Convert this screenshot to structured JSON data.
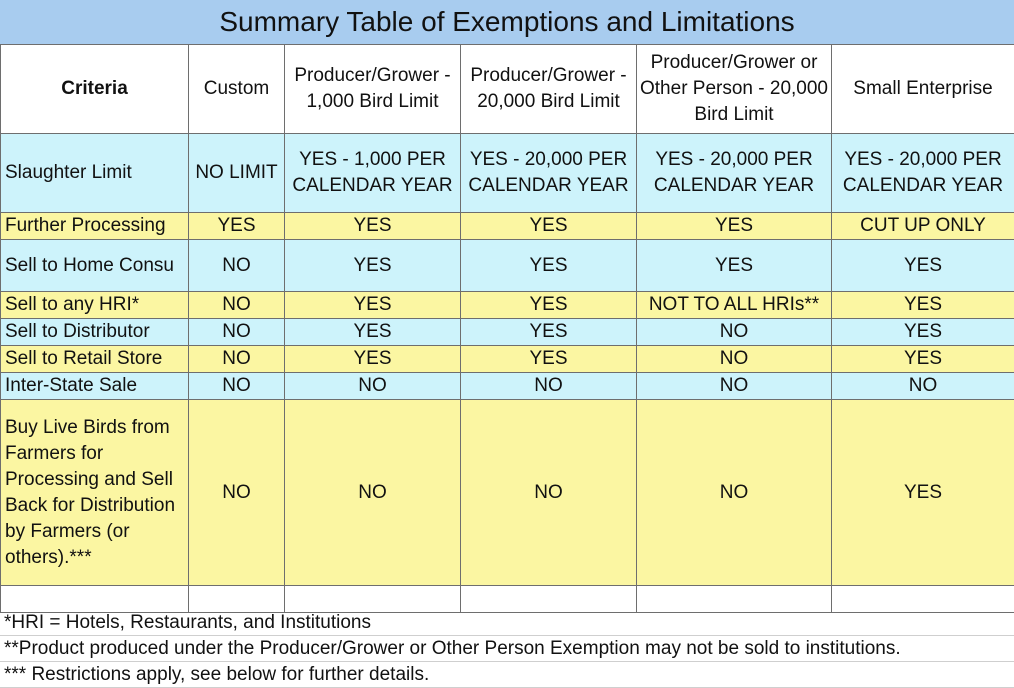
{
  "title": "Summary Table of Exemptions and Limitations",
  "headers": [
    "Criteria",
    "Custom",
    "Producer/Grower - 1,000 Bird Limit",
    "Producer/Grower - 20,000 Bird Limit",
    "Producer/Grower or Other Person - 20,000 Bird Limit",
    "Small Enterprise"
  ],
  "rows": [
    {
      "label": "Slaughter Limit",
      "values": [
        "NO LIMIT",
        "YES - 1,000 PER CALENDAR YEAR",
        "YES - 20,000 PER CALENDAR YEAR",
        "YES - 20,000 PER CALENDAR YEAR",
        "YES - 20,000 PER CALENDAR YEAR"
      ]
    },
    {
      "label": "Further Processing",
      "values": [
        "YES",
        "YES",
        "YES",
        "YES",
        "CUT UP ONLY"
      ]
    },
    {
      "label": "Sell to Home Consu",
      "values": [
        "NO",
        "YES",
        "YES",
        "YES",
        "YES"
      ]
    },
    {
      "label": "Sell to any HRI*",
      "values": [
        "NO",
        "YES",
        "YES",
        "NOT TO ALL HRIs**",
        "YES"
      ]
    },
    {
      "label": "Sell to Distributor",
      "values": [
        "NO",
        "YES",
        "YES",
        "NO",
        "YES"
      ]
    },
    {
      "label": "Sell to Retail Store",
      "values": [
        "NO",
        "YES",
        "YES",
        "NO",
        "YES"
      ]
    },
    {
      "label": "Inter-State Sale",
      "values": [
        "NO",
        "NO",
        "NO",
        "NO",
        "NO"
      ]
    },
    {
      "label": "Buy Live Birds from Farmers for Processing and Sell Back for Distribution by Farmers (or others).***",
      "values": [
        "NO",
        "NO",
        "NO",
        "NO",
        "YES"
      ]
    }
  ],
  "notes": [
    "*HRI = Hotels, Restaurants, and Institutions",
    "**Product produced under the Producer/Grower or Other Person Exemption may not be sold to institutions.",
    "*** Restrictions apply, see below for further details."
  ]
}
